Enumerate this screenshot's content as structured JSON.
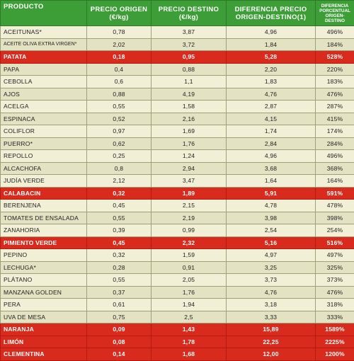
{
  "headers": {
    "producto": "PRODUCTO",
    "precio_origen": "PRECIO ORIGEN (€/kg)",
    "precio_destino": "PRECIO DESTINO (€/kg)",
    "diferencia": "DIFERENCIA PRECIO ORIGEN-DESTINO(1)",
    "porcentual": "DIFERENCIA PORCENTUAL ORIGEN-DESTINO"
  },
  "rows": [
    {
      "producto": "ACEITUNAS*",
      "origen": "0,78",
      "destino": "3,87",
      "diferencia": "4,96",
      "porcentual": "496%",
      "highlight": false
    },
    {
      "producto": "ACEITE OLIVA EXTRA VIRGEN*",
      "origen": "2,02",
      "destino": "3,72",
      "diferencia": "1,84",
      "porcentual": "184%",
      "highlight": false
    },
    {
      "producto": "PATATA",
      "origen": "0,18",
      "destino": "0,95",
      "diferencia": "5,28",
      "porcentual": "528%",
      "highlight": true
    },
    {
      "producto": "PAPA",
      "origen": "0,4",
      "destino": "0,88",
      "diferencia": "2,20",
      "porcentual": "220%",
      "highlight": false
    },
    {
      "producto": "CEBOLLA",
      "origen": "0,6",
      "destino": "1,1",
      "diferencia": "1,83",
      "porcentual": "183%",
      "highlight": false
    },
    {
      "producto": "AJOS",
      "origen": "0,88",
      "destino": "4,19",
      "diferencia": "4,76",
      "porcentual": "476%",
      "highlight": false
    },
    {
      "producto": "ACELGA",
      "origen": "0,55",
      "destino": "1,58",
      "diferencia": "2,87",
      "porcentual": "287%",
      "highlight": false
    },
    {
      "producto": "ESPINACA",
      "origen": "0,52",
      "destino": "2,16",
      "diferencia": "4,15",
      "porcentual": "415%",
      "highlight": false
    },
    {
      "producto": "COLIFLOR",
      "origen": "0,97",
      "destino": "1,69",
      "diferencia": "1,74",
      "porcentual": "174%",
      "highlight": false
    },
    {
      "producto": "PUERRO*",
      "origen": "0,62",
      "destino": "1,76",
      "diferencia": "2,84",
      "porcentual": "284%",
      "highlight": false
    },
    {
      "producto": "REPOLLO",
      "origen": "0,25",
      "destino": "1,24",
      "diferencia": "4,96",
      "porcentual": "496%",
      "highlight": false
    },
    {
      "producto": "ALCACHOFA",
      "origen": "0,8",
      "destino": "2,94",
      "diferencia": "3,68",
      "porcentual": "368%",
      "highlight": false
    },
    {
      "producto": "JUDÍA VERDE",
      "origen": "2,12",
      "destino": "3,47",
      "diferencia": "1,64",
      "porcentual": "164%",
      "highlight": false
    },
    {
      "producto": "CALABACIN",
      "origen": "0,32",
      "destino": "1,89",
      "diferencia": "5,91",
      "porcentual": "591%",
      "highlight": true
    },
    {
      "producto": "BERENJENA",
      "origen": "0,45",
      "destino": "2,15",
      "diferencia": "4,78",
      "porcentual": "478%",
      "highlight": false
    },
    {
      "producto": "TOMATES DE ENSALADA",
      "origen": "0,55",
      "destino": "2,19",
      "diferencia": "3,98",
      "porcentual": "398%",
      "highlight": false
    },
    {
      "producto": "ZANAHORIA",
      "origen": "0,39",
      "destino": "0,99",
      "diferencia": "2,54",
      "porcentual": "254%",
      "highlight": false
    },
    {
      "producto": "PIMIENTO VERDE",
      "origen": "0,45",
      "destino": "2,32",
      "diferencia": "5,16",
      "porcentual": "516%",
      "highlight": true
    },
    {
      "producto": "PEPINO",
      "origen": "0,32",
      "destino": "1,59",
      "diferencia": "4,97",
      "porcentual": "497%",
      "highlight": false
    },
    {
      "producto": "LECHUGA*",
      "origen": "0,28",
      "destino": "0,91",
      "diferencia": "3,25",
      "porcentual": "325%",
      "highlight": false
    },
    {
      "producto": "PLÁTANO",
      "origen": "0,55",
      "destino": "2,05",
      "diferencia": "3,73",
      "porcentual": "373%",
      "highlight": false
    },
    {
      "producto": "MANZANA GOLDEN",
      "origen": "0,37",
      "destino": "1,76",
      "diferencia": "4,76",
      "porcentual": "476%",
      "highlight": false
    },
    {
      "producto": "PERA",
      "origen": "0,61",
      "destino": "1,94",
      "diferencia": "3,18",
      "porcentual": "318%",
      "highlight": false
    },
    {
      "producto": "UVA DE MESA",
      "origen": "0,75",
      "destino": "2,5",
      "diferencia": "3,33",
      "porcentual": "333%",
      "highlight": false
    },
    {
      "producto": "NARANJA",
      "origen": "0,09",
      "destino": "1,43",
      "diferencia": "15,89",
      "porcentual": "1589%",
      "highlight": true
    },
    {
      "producto": "LIMÓN",
      "origen": "0,08",
      "destino": "1,78",
      "diferencia": "22,25",
      "porcentual": "2225%",
      "highlight": true
    },
    {
      "producto": "CLEMENTINA",
      "origen": "0,14",
      "destino": "1,68",
      "diferencia": "12,00",
      "porcentual": "1200%",
      "highlight": true
    }
  ],
  "colors": {
    "header_green": "#3d9d37",
    "row_light": "#f1f0d6",
    "row_alt": "#e3e2c2",
    "highlight_red": "#d92a1e"
  }
}
